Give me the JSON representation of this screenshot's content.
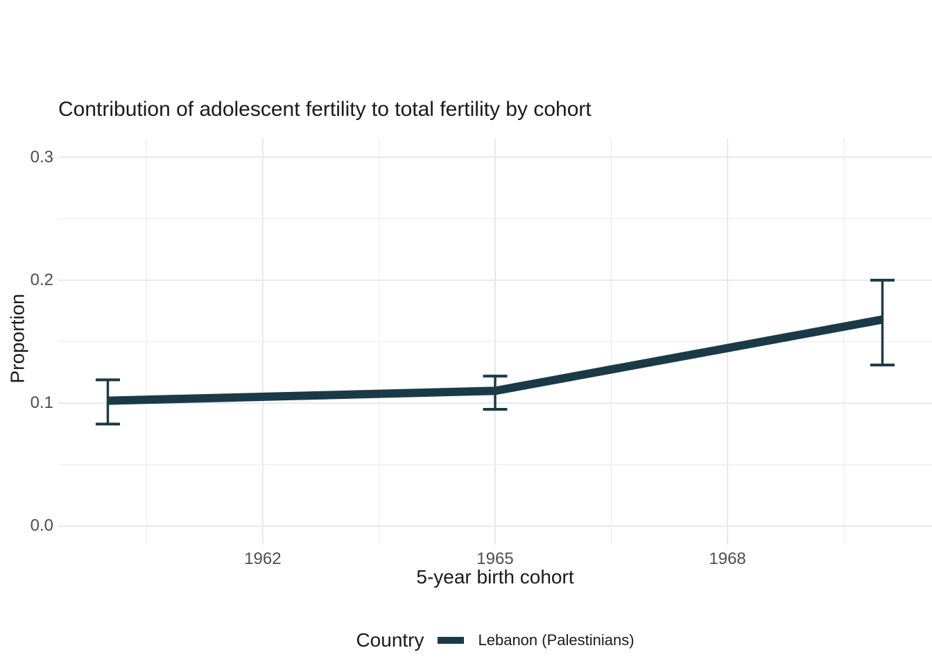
{
  "title": "Contribution of adolescent fertility to total fertility by cohort",
  "colors": {
    "background": "#ffffff",
    "series": "#1b3a47",
    "grid_major": "#e8e8e8",
    "grid_minor": "#f0f0f0",
    "tick_label": "#4d4d4d",
    "text": "#1a1a1a"
  },
  "legend": {
    "title": "Country",
    "items": [
      {
        "label": "Lebanon (Palestinians)",
        "color": "#1b3a47",
        "swatch": "line"
      }
    ],
    "position": "bottom"
  },
  "chart_data": {
    "type": "line",
    "title": "Contribution of adolescent fertility to total fertility by cohort",
    "xlabel": "5-year birth cohort",
    "ylabel": "Proportion",
    "x": [
      1960,
      1965,
      1970
    ],
    "series": [
      {
        "name": "Lebanon (Palestinians)",
        "color": "#1b3a47",
        "values": [
          0.102,
          0.11,
          0.168
        ],
        "ci_lower": [
          0.083,
          0.095,
          0.131
        ],
        "ci_upper": [
          0.119,
          0.122,
          0.2
        ]
      }
    ],
    "error_bars": true,
    "markers": false,
    "grid": true,
    "legend_position": "bottom",
    "xlim": [
      1959.36,
      1970.64
    ],
    "ylim": [
      -0.015,
      0.315
    ],
    "x_ticks": [
      1962,
      1965,
      1968
    ],
    "x_tick_labels": [
      "1962",
      "1965",
      "1968"
    ],
    "x_minor_ticks": [
      1960.5,
      1963.5,
      1966.5,
      1969.5
    ],
    "y_ticks": [
      0.0,
      0.1,
      0.2,
      0.3
    ],
    "y_tick_labels": [
      "0.0",
      "0.1",
      "0.2",
      "0.3"
    ],
    "y_minor_ticks": [
      0.05,
      0.15,
      0.25
    ]
  }
}
